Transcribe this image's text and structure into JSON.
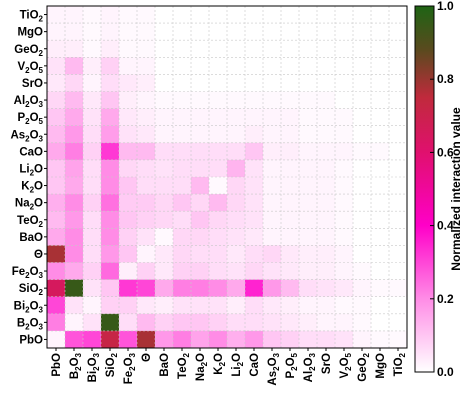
{
  "chart_data": {
    "type": "heatmap",
    "title": "",
    "xlabel": "",
    "ylabel": "",
    "x_labels": [
      "PbO",
      "B2O3",
      "Bi2O3",
      "SiO2",
      "Fe2O3",
      "Θ",
      "BaO",
      "TeO2",
      "Na2O",
      "K2O",
      "Li2O",
      "CaO",
      "As2O3",
      "P2O5",
      "Al2O3",
      "SrO",
      "V2O5",
      "GeO2",
      "MgO",
      "TiO2"
    ],
    "y_labels_top_to_bottom": [
      "TiO2",
      "MgO",
      "GeO2",
      "V2O5",
      "SrO",
      "Al2O3",
      "P2O5",
      "As2O3",
      "CaO",
      "Li2O",
      "K2O",
      "Na2O",
      "TeO2",
      "BaO",
      "Θ",
      "Fe2O3",
      "SiO2",
      "Bi2O3",
      "B2O3",
      "PbO"
    ],
    "colorbar": {
      "label": "Normalized interaction value",
      "range": [
        0.0,
        1.0
      ],
      "ticks": [
        "0.0",
        "0.2",
        "0.4",
        "0.6",
        "0.8",
        "1.0"
      ],
      "colors": [
        "#ffffff",
        "#ff00c8",
        "#d01850",
        "#1e6414"
      ]
    },
    "grid": true,
    "matrix_rows_top_to_bottom": [
      [
        0.02,
        0.02,
        0.01,
        0.02,
        0.01,
        0.01,
        0,
        0,
        0,
        0,
        0,
        0,
        0,
        0,
        0,
        0,
        0,
        0,
        0,
        0
      ],
      [
        0.02,
        0.02,
        0.01,
        0.02,
        0.01,
        0.01,
        0,
        0,
        0,
        0,
        0,
        0,
        0,
        0,
        0,
        0,
        0,
        0,
        0,
        0
      ],
      [
        0.03,
        0.03,
        0.01,
        0.03,
        0.01,
        0.01,
        0,
        0,
        0,
        0,
        0,
        0,
        0,
        0,
        0,
        0,
        0,
        0,
        0,
        0
      ],
      [
        0.05,
        0.12,
        0.03,
        0.08,
        0.02,
        0.02,
        0,
        0,
        0,
        0,
        0,
        0,
        0,
        0,
        0,
        0,
        0,
        0,
        0,
        0
      ],
      [
        0.04,
        0.07,
        0.02,
        0.06,
        0.04,
        0.03,
        0,
        0,
        0,
        0,
        0,
        0,
        0,
        0,
        0,
        0,
        0,
        0,
        0,
        0
      ],
      [
        0.07,
        0.12,
        0.04,
        0.1,
        0.03,
        0.02,
        0.01,
        0.01,
        0.01,
        0.01,
        0.01,
        0.01,
        0.01,
        0.01,
        0.01,
        0.01,
        0,
        0,
        0,
        0
      ],
      [
        0.1,
        0.15,
        0.05,
        0.15,
        0.04,
        0.03,
        0.02,
        0.02,
        0.02,
        0.02,
        0.02,
        0.02,
        0.02,
        0.02,
        0.01,
        0.01,
        0.01,
        0,
        0,
        0
      ],
      [
        0.12,
        0.18,
        0.06,
        0.17,
        0.05,
        0.04,
        0.02,
        0.02,
        0.02,
        0.02,
        0.02,
        0.03,
        0.02,
        0.02,
        0.01,
        0.01,
        0.01,
        0,
        0,
        0
      ],
      [
        0.15,
        0.22,
        0.08,
        0.32,
        0.12,
        0.12,
        0.06,
        0.06,
        0.06,
        0.06,
        0.06,
        0.1,
        0.03,
        0.03,
        0.02,
        0.02,
        0.02,
        0.01,
        0.01,
        0
      ],
      [
        0.1,
        0.16,
        0.06,
        0.2,
        0.07,
        0.06,
        0.05,
        0.06,
        0.06,
        0.06,
        0.13,
        0.05,
        0.02,
        0.02,
        0.02,
        0.02,
        0.01,
        0,
        0,
        0
      ],
      [
        0.1,
        0.15,
        0.06,
        0.2,
        0.1,
        0.06,
        0.06,
        0.06,
        0.12,
        0.01,
        0.07,
        0.05,
        0.02,
        0.02,
        0.02,
        0.02,
        0.01,
        0,
        0,
        0
      ],
      [
        0.14,
        0.2,
        0.08,
        0.24,
        0.09,
        0.09,
        0.07,
        0.1,
        0.07,
        0.12,
        0.07,
        0.05,
        0.02,
        0.02,
        0.02,
        0.02,
        0.01,
        0,
        0,
        0
      ],
      [
        0.12,
        0.18,
        0.06,
        0.2,
        0.1,
        0.08,
        0.07,
        0.06,
        0.1,
        0.07,
        0.06,
        0.05,
        0.02,
        0.02,
        0.02,
        0.02,
        0.01,
        0,
        0,
        0
      ],
      [
        0.15,
        0.2,
        0.06,
        0.2,
        0.08,
        0.05,
        0.01,
        0.07,
        0.07,
        0.06,
        0.05,
        0.04,
        0.02,
        0.02,
        0.02,
        0.02,
        0.01,
        0,
        0,
        0
      ],
      [
        0.78,
        0.2,
        0.06,
        0.18,
        0.1,
        0.02,
        0.04,
        0.07,
        0.06,
        0.06,
        0.04,
        0.06,
        0.07,
        0.04,
        0.03,
        0.03,
        0.02,
        0,
        0,
        0
      ],
      [
        0.2,
        0.15,
        0.08,
        0.25,
        0.03,
        0.08,
        0.04,
        0.08,
        0.08,
        0.06,
        0.05,
        0.07,
        0.05,
        0.04,
        0.03,
        0.03,
        0.02,
        0.01,
        0,
        0
      ],
      [
        0.65,
        0.95,
        0.05,
        0.1,
        0.32,
        0.3,
        0.15,
        0.22,
        0.22,
        0.2,
        0.15,
        0.35,
        0.18,
        0.12,
        0.06,
        0.05,
        0.04,
        0.02,
        0.01,
        0.01
      ],
      [
        0.3,
        0.05,
        0.02,
        0.08,
        0.08,
        0.04,
        0.03,
        0.05,
        0.05,
        0.05,
        0.03,
        0.06,
        0.04,
        0.03,
        0.02,
        0.02,
        0.01,
        0.01,
        0,
        0
      ],
      [
        0.22,
        0.02,
        0.05,
        0.95,
        0.06,
        0.12,
        0.08,
        0.1,
        0.1,
        0.08,
        0.06,
        0.06,
        0.05,
        0.04,
        0.03,
        0.02,
        0.02,
        0.01,
        0,
        0
      ],
      [
        0.02,
        0.28,
        0.3,
        0.72,
        0.28,
        0.78,
        0.18,
        0.22,
        0.16,
        0.2,
        0.14,
        0.18,
        0.1,
        0.08,
        0.06,
        0.06,
        0.05,
        0.02,
        0.01,
        0.01
      ]
    ]
  }
}
